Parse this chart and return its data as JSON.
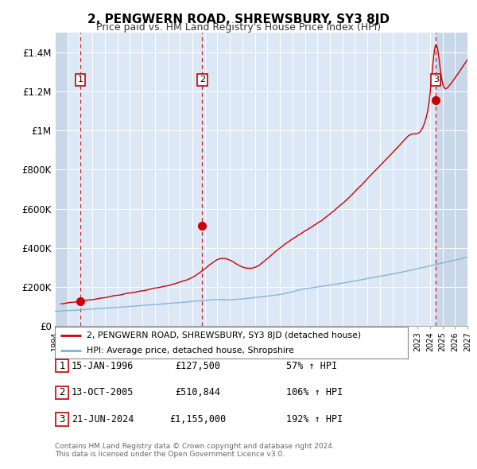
{
  "title": "2, PENGWERN ROAD, SHREWSBURY, SY3 8JD",
  "subtitle": "Price paid vs. HM Land Registry's House Price Index (HPI)",
  "plot_bg_color": "#dce8f5",
  "hatch_color": "#c8d8e8",
  "ylabel": "",
  "ylim": [
    0,
    1500000
  ],
  "yticks": [
    0,
    200000,
    400000,
    600000,
    800000,
    1000000,
    1200000,
    1400000
  ],
  "ytick_labels": [
    "£0",
    "£200K",
    "£400K",
    "£600K",
    "£800K",
    "£1M",
    "£1.2M",
    "£1.4M"
  ],
  "xmin": 1994.0,
  "xmax": 2027.0,
  "sale_color": "#cc0000",
  "hpi_color": "#7bafd4",
  "sale_label": "2, PENGWERN ROAD, SHREWSBURY, SY3 8JD (detached house)",
  "hpi_label": "HPI: Average price, detached house, Shropshire",
  "transactions": [
    {
      "num": 1,
      "date_label": "15-JAN-1996",
      "date_x": 1996.04,
      "price": 127500,
      "pct": "57%"
    },
    {
      "num": 2,
      "date_label": "13-OCT-2005",
      "date_x": 2005.78,
      "price": 510844,
      "pct": "106%"
    },
    {
      "num": 3,
      "date_label": "21-JUN-2024",
      "date_x": 2024.47,
      "price": 1155000,
      "pct": "192%"
    }
  ],
  "footer_line1": "Contains HM Land Registry data © Crown copyright and database right 2024.",
  "footer_line2": "This data is licensed under the Open Government Licence v3.0."
}
